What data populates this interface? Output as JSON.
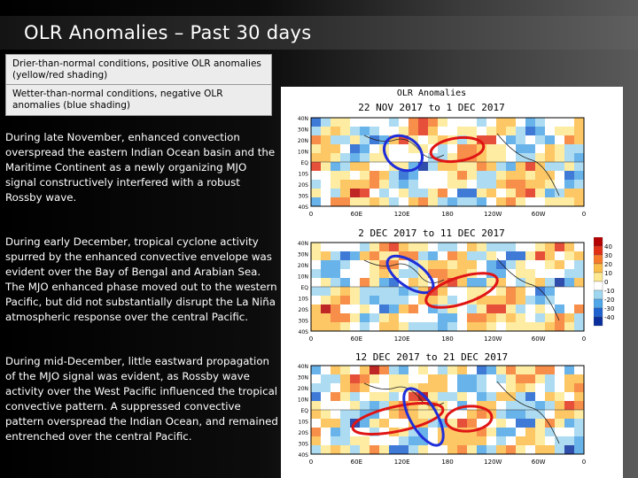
{
  "slide": {
    "title": "OLR Anomalies – Past 30 days",
    "legend": {
      "positive": "Drier-than-normal conditions, positive OLR anomalies (yellow/red shading)",
      "negative": "Wetter-than-normal conditions, negative OLR anomalies (blue shading)"
    },
    "paragraphs": [
      "During late November, enhanced convection overspread the eastern Indian Ocean basin and the Maritime Continent as a newly organizing MJO signal constructively interfered with a robust Rossby wave.",
      "During early December, tropical cyclone activity spurred by the enhanced convective envelope was evident over the Bay of Bengal and Arabian Sea. The MJO enhanced phase moved out to the western Pacific, but did not substantially disrupt the La Niña atmospheric response over the central Pacific.",
      "During mid-December, little eastward propagation of the MJO signal was evident, as Rossby wave activity over the West Pacific influenced the tropical convective pattern. A suppressed convective pattern overspread the Indian Ocean, and remained entrenched over the central Pacific."
    ]
  },
  "figure": {
    "name": "OLR Anomalies",
    "panels": [
      {
        "period": "22 NOV 2017 to 1 DEC 2017",
        "lon_labels": [
          "0",
          "60E",
          "120E",
          "180",
          "120W",
          "60W",
          "0"
        ]
      },
      {
        "period": "2 DEC 2017 to 11 DEC 2017",
        "lon_labels": [
          "0",
          "60E",
          "120E",
          "180",
          "120W",
          "60W",
          "0"
        ]
      },
      {
        "period": "12 DEC 2017 to 21 DEC 2017",
        "lon_labels": [
          "0",
          "60E",
          "120E",
          "180",
          "120W",
          "60W",
          "0"
        ]
      }
    ],
    "lat_labels": [
      "40N",
      "30N",
      "20N",
      "10N",
      "EQ",
      "10S",
      "20S",
      "30S",
      "40S"
    ],
    "colorbar": {
      "ticks": [
        "40",
        "30",
        "20",
        "10",
        "0",
        "-10",
        "-20",
        "-30",
        "-40"
      ],
      "colors": [
        "#b40000",
        "#e23016",
        "#f67a2a",
        "#fbbd49",
        "#fde992",
        "#ffffff",
        "#9fd6f0",
        "#4fa6e8",
        "#1e63d0",
        "#0a2e9c"
      ]
    },
    "ellipse_colors": {
      "enhanced": "#1f2ed8",
      "suppressed": "#e01414"
    }
  }
}
